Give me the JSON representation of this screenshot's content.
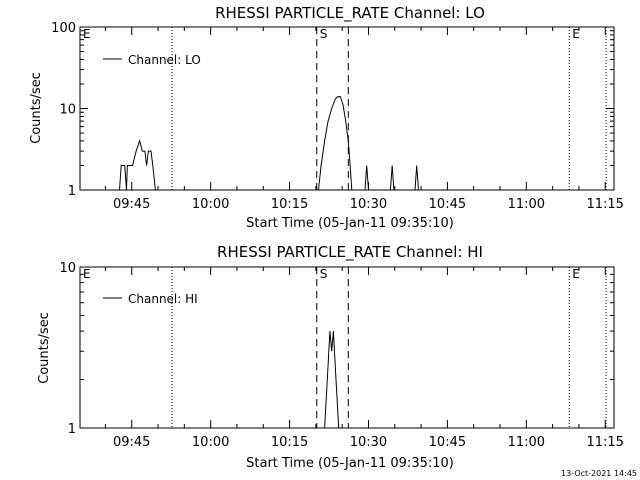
{
  "footer_timestamp": "13-Oct-2021 14:45",
  "chart_data": [
    {
      "type": "line",
      "title": "RHESSI PARTICLE_RATE Channel: LO",
      "xlabel": "Start Time (05-Jan-11 09:35:10)",
      "ylabel": "Counts/sec",
      "y_scale": "log",
      "ylim": [
        1,
        100
      ],
      "y_ticks": [
        "1",
        "10",
        "100"
      ],
      "xlim": [
        "09:35:10",
        "11:16:40"
      ],
      "x_ticks": [
        "09:45",
        "10:00",
        "10:15",
        "10:30",
        "10:45",
        "11:00",
        "11:15"
      ],
      "legend": {
        "entries": [
          "Channel: LO"
        ],
        "placement": "top-left"
      },
      "grid": false,
      "markers": [
        {
          "label": "E",
          "time": "09:35:10",
          "style": "dotted"
        },
        {
          "label": "",
          "time": "09:52:40",
          "style": "dotted"
        },
        {
          "label": "S",
          "time": "10:20:10",
          "style": "dashed"
        },
        {
          "label": "",
          "time": "10:26:10",
          "style": "dashed"
        },
        {
          "label": "E",
          "time": "11:08:10",
          "style": "dotted"
        },
        {
          "label": "",
          "time": "11:15:10",
          "style": "dotted"
        }
      ],
      "series": [
        {
          "name": "Channel: LO",
          "segments": [
            [
              [
                "09:42:40",
                1
              ],
              [
                "09:43:00",
                2
              ],
              [
                "09:43:40",
                2
              ],
              [
                "09:44:00",
                1
              ],
              [
                "09:44:10",
                2
              ],
              [
                "09:45:10",
                2
              ],
              [
                "09:45:50",
                3
              ],
              [
                "09:46:30",
                4
              ],
              [
                "09:47:00",
                3
              ],
              [
                "09:47:30",
                3
              ],
              [
                "09:47:50",
                2
              ],
              [
                "09:48:10",
                3
              ],
              [
                "09:48:40",
                3
              ],
              [
                "09:49:00",
                2
              ],
              [
                "09:49:30",
                1
              ]
            ],
            [
              [
                "10:20:30",
                1
              ],
              [
                "10:21:00",
                2
              ],
              [
                "10:21:40",
                4
              ],
              [
                "10:22:20",
                7
              ],
              [
                "10:23:00",
                10
              ],
              [
                "10:23:40",
                13
              ],
              [
                "10:24:10",
                14
              ],
              [
                "10:24:40",
                14
              ],
              [
                "10:25:10",
                11
              ],
              [
                "10:25:40",
                7
              ],
              [
                "10:26:10",
                4
              ],
              [
                "10:26:30",
                2
              ],
              [
                "10:26:50",
                1
              ]
            ],
            [
              [
                "10:29:20",
                1
              ],
              [
                "10:29:40",
                2
              ],
              [
                "10:30:00",
                1
              ]
            ],
            [
              [
                "10:34:10",
                1
              ],
              [
                "10:34:30",
                2
              ],
              [
                "10:34:50",
                1
              ]
            ],
            [
              [
                "10:38:50",
                1
              ],
              [
                "10:39:10",
                2
              ],
              [
                "10:39:30",
                1
              ]
            ]
          ]
        }
      ]
    },
    {
      "type": "line",
      "title": "RHESSI PARTICLE_RATE Channel: HI",
      "xlabel": "Start Time (05-Jan-11 09:35:10)",
      "ylabel": "Counts/sec",
      "y_scale": "log",
      "ylim": [
        1,
        10
      ],
      "y_ticks": [
        "1",
        "10"
      ],
      "xlim": [
        "09:35:10",
        "11:16:40"
      ],
      "x_ticks": [
        "09:45",
        "10:00",
        "10:15",
        "10:30",
        "10:45",
        "11:00",
        "11:15"
      ],
      "legend": {
        "entries": [
          "Channel: HI"
        ],
        "placement": "top-left"
      },
      "grid": false,
      "markers": [
        {
          "label": "E",
          "time": "09:35:10",
          "style": "dotted"
        },
        {
          "label": "",
          "time": "09:52:40",
          "style": "dotted"
        },
        {
          "label": "S",
          "time": "10:20:10",
          "style": "dashed"
        },
        {
          "label": "",
          "time": "10:26:10",
          "style": "dashed"
        },
        {
          "label": "E",
          "time": "11:08:10",
          "style": "dotted"
        },
        {
          "label": "",
          "time": "11:15:10",
          "style": "dotted"
        }
      ],
      "series": [
        {
          "name": "Channel: HI",
          "segments": [
            [
              [
                "10:21:40",
                1
              ],
              [
                "10:22:10",
                2
              ],
              [
                "10:22:40",
                4
              ],
              [
                "10:23:00",
                3
              ],
              [
                "10:23:20",
                4
              ],
              [
                "10:23:50",
                2
              ],
              [
                "10:24:20",
                1
              ]
            ]
          ]
        }
      ]
    }
  ]
}
